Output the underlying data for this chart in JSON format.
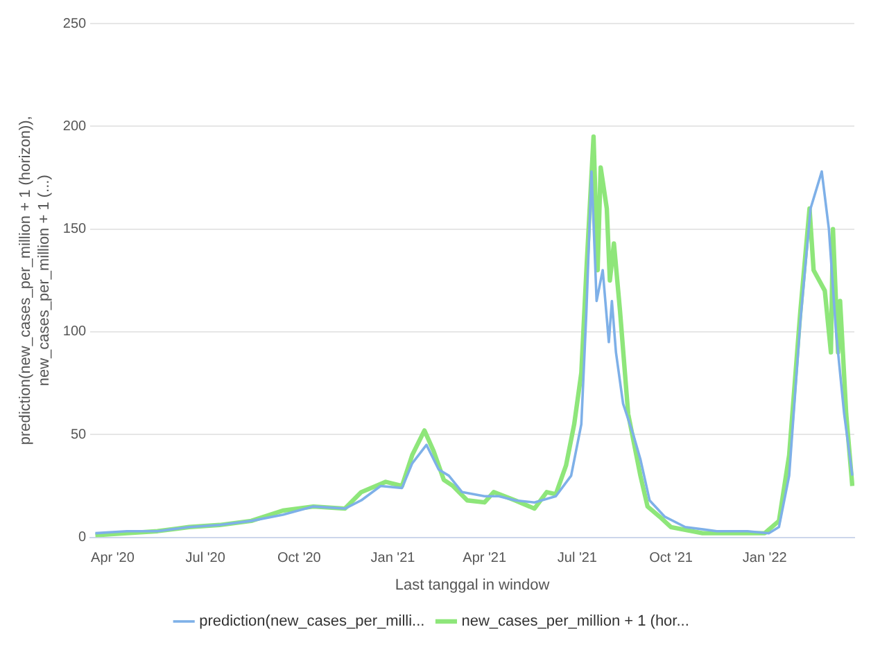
{
  "chart_data": {
    "type": "line",
    "xlabel": "Last tanggal in window",
    "ylabel": "prediction(new_cases_per_million + 1 (horizon)),\nnew_cases_per_million + 1 (...)",
    "xlim": [
      "2020-03-10",
      "2022-03-30"
    ],
    "xticks": [
      {
        "value": "2020-04-01",
        "label": "Apr '20"
      },
      {
        "value": "2020-07-01",
        "label": "Jul '20"
      },
      {
        "value": "2020-10-01",
        "label": "Oct '20"
      },
      {
        "value": "2021-01-01",
        "label": "Jan '21"
      },
      {
        "value": "2021-04-01",
        "label": "Apr '21"
      },
      {
        "value": "2021-07-01",
        "label": "Jul '21"
      },
      {
        "value": "2021-10-01",
        "label": "Oct '21"
      },
      {
        "value": "2022-01-01",
        "label": "Jan '22"
      }
    ],
    "ylim": [
      0,
      250
    ],
    "yticks": [
      0,
      50,
      100,
      150,
      200,
      250
    ],
    "grid": "y",
    "legend": "bottom",
    "marker": "none",
    "line_style": "solid",
    "series": [
      {
        "name": "prediction(new_cases_per_milli...",
        "color": "#7eb0e8",
        "x": [
          "2020-03-15",
          "2020-04-15",
          "2020-05-15",
          "2020-06-15",
          "2020-07-15",
          "2020-08-15",
          "2020-09-15",
          "2020-10-15",
          "2020-11-15",
          "2020-12-01",
          "2020-12-20",
          "2021-01-10",
          "2021-01-20",
          "2021-02-03",
          "2021-02-15",
          "2021-02-25",
          "2021-03-10",
          "2021-04-01",
          "2021-04-15",
          "2021-05-01",
          "2021-05-20",
          "2021-06-10",
          "2021-06-25",
          "2021-07-05",
          "2021-07-10",
          "2021-07-15",
          "2021-07-20",
          "2021-07-26",
          "2021-08-01",
          "2021-08-04",
          "2021-08-08",
          "2021-08-15",
          "2021-08-25",
          "2021-09-01",
          "2021-09-10",
          "2021-09-25",
          "2021-10-15",
          "2021-11-15",
          "2021-12-15",
          "2022-01-05",
          "2022-01-15",
          "2022-01-25",
          "2022-02-05",
          "2022-02-15",
          "2022-02-26",
          "2022-03-05",
          "2022-03-12",
          "2022-03-20",
          "2022-03-28"
        ],
        "values": [
          2,
          3,
          3,
          5,
          6,
          8,
          11,
          15,
          14,
          18,
          25,
          24,
          36,
          45,
          33,
          30,
          22,
          20,
          20,
          18,
          17,
          20,
          30,
          55,
          110,
          178,
          115,
          130,
          95,
          115,
          90,
          65,
          50,
          38,
          18,
          10,
          5,
          3,
          3,
          2,
          5,
          30,
          105,
          160,
          178,
          150,
          100,
          60,
          30
        ]
      },
      {
        "name": "new_cases_per_million + 1 (hor...",
        "color": "#8ee67a",
        "x": [
          "2020-03-15",
          "2020-04-15",
          "2020-05-15",
          "2020-06-15",
          "2020-07-15",
          "2020-08-15",
          "2020-09-15",
          "2020-10-15",
          "2020-11-15",
          "2020-12-01",
          "2020-12-25",
          "2021-01-10",
          "2021-01-20",
          "2021-02-01",
          "2021-02-10",
          "2021-02-20",
          "2021-03-01",
          "2021-03-15",
          "2021-04-01",
          "2021-04-10",
          "2021-05-01",
          "2021-05-20",
          "2021-06-01",
          "2021-06-10",
          "2021-06-20",
          "2021-06-28",
          "2021-07-05",
          "2021-07-10",
          "2021-07-17",
          "2021-07-21",
          "2021-07-24",
          "2021-07-30",
          "2021-08-02",
          "2021-08-06",
          "2021-08-12",
          "2021-08-20",
          "2021-09-01",
          "2021-09-08",
          "2021-09-20",
          "2021-10-01",
          "2021-11-01",
          "2021-12-01",
          "2022-01-01",
          "2022-01-15",
          "2022-01-25",
          "2022-02-05",
          "2022-02-14",
          "2022-02-18",
          "2022-03-01",
          "2022-03-07",
          "2022-03-09",
          "2022-03-14",
          "2022-03-16",
          "2022-03-22",
          "2022-03-28"
        ],
        "values": [
          1,
          2,
          3,
          5,
          6,
          8,
          13,
          15,
          14,
          22,
          27,
          25,
          40,
          52,
          42,
          28,
          25,
          18,
          17,
          22,
          18,
          14,
          22,
          21,
          35,
          55,
          80,
          130,
          195,
          130,
          180,
          160,
          125,
          143,
          110,
          60,
          30,
          15,
          10,
          5,
          2,
          2,
          2,
          8,
          40,
          110,
          160,
          130,
          120,
          90,
          150,
          90,
          115,
          60,
          25
        ]
      }
    ]
  }
}
